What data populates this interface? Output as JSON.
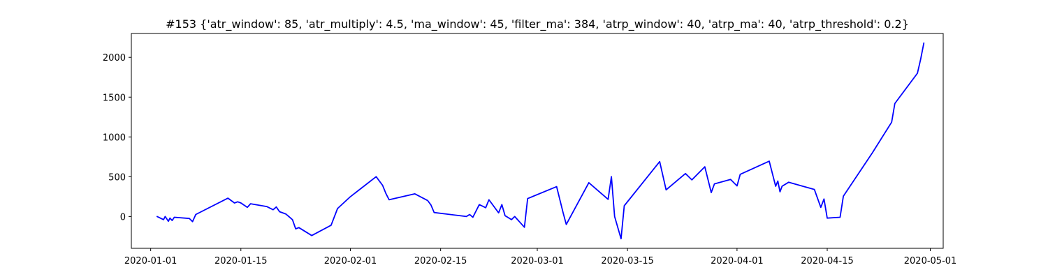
{
  "chart_data": {
    "type": "line",
    "title": "#153 {'atr_window': 85, 'atr_multiply': 4.5, 'ma_window': 45, 'filter_ma': 384, 'atrp_window': 40, 'atrp_ma': 40, 'atrp_threshold': 0.2}",
    "xlabel": "",
    "ylabel": "",
    "x_type": "date",
    "xlim": [
      "2019-12-29",
      "2020-05-03"
    ],
    "ylim": [
      -400,
      2300
    ],
    "x_ticks": [
      "2020-01-01",
      "2020-01-15",
      "2020-02-01",
      "2020-02-15",
      "2020-03-01",
      "2020-03-15",
      "2020-04-01",
      "2020-04-15",
      "2020-05-01"
    ],
    "y_ticks": [
      0,
      500,
      1000,
      1500,
      2000
    ],
    "grid": false,
    "colors": {
      "line": "#0000ff",
      "axes": "#000000",
      "background": "#ffffff"
    },
    "series": [
      {
        "points": [
          [
            "2020-01-02",
            0
          ],
          [
            "2020-01-03",
            -40
          ],
          [
            "2020-01-03",
            0
          ],
          [
            "2020-01-03",
            -30
          ],
          [
            "2020-01-03",
            -60
          ],
          [
            "2020-01-04",
            -20
          ],
          [
            "2020-01-04",
            -50
          ],
          [
            "2020-01-04",
            -10
          ],
          [
            "2020-01-07",
            -25
          ],
          [
            "2020-01-07",
            -65
          ],
          [
            "2020-01-08",
            25
          ],
          [
            "2020-01-13",
            230
          ],
          [
            "2020-01-14",
            170
          ],
          [
            "2020-01-14",
            185
          ],
          [
            "2020-01-15",
            170
          ],
          [
            "2020-01-16",
            115
          ],
          [
            "2020-01-16",
            160
          ],
          [
            "2020-01-19",
            125
          ],
          [
            "2020-01-20",
            85
          ],
          [
            "2020-01-20",
            120
          ],
          [
            "2020-01-21",
            60
          ],
          [
            "2020-01-22",
            30
          ],
          [
            "2020-01-23",
            -40
          ],
          [
            "2020-01-23",
            -155
          ],
          [
            "2020-01-24",
            -140
          ],
          [
            "2020-01-26",
            -240
          ],
          [
            "2020-01-29",
            -110
          ],
          [
            "2020-01-30",
            100
          ],
          [
            "2020-02-01",
            250
          ],
          [
            "2020-02-05",
            500
          ],
          [
            "2020-02-06",
            390
          ],
          [
            "2020-02-06",
            290
          ],
          [
            "2020-02-07",
            210
          ],
          [
            "2020-02-11",
            285
          ],
          [
            "2020-02-13",
            200
          ],
          [
            "2020-02-13",
            145
          ],
          [
            "2020-02-14",
            50
          ],
          [
            "2020-02-19",
            0
          ],
          [
            "2020-02-19",
            25
          ],
          [
            "2020-02-20",
            -10
          ],
          [
            "2020-02-21",
            150
          ],
          [
            "2020-02-22",
            110
          ],
          [
            "2020-02-22",
            210
          ],
          [
            "2020-02-24",
            45
          ],
          [
            "2020-02-24",
            150
          ],
          [
            "2020-02-25",
            10
          ],
          [
            "2020-02-26",
            -40
          ],
          [
            "2020-02-26",
            0
          ],
          [
            "2020-02-28",
            -135
          ],
          [
            "2020-02-28",
            225
          ],
          [
            "2020-03-04",
            375
          ],
          [
            "2020-03-05",
            50
          ],
          [
            "2020-03-05",
            -100
          ],
          [
            "2020-03-09",
            425
          ],
          [
            "2020-03-12",
            215
          ],
          [
            "2020-03-12",
            500
          ],
          [
            "2020-03-13",
            0
          ],
          [
            "2020-03-14",
            -280
          ],
          [
            "2020-03-14",
            135
          ],
          [
            "2020-03-20",
            690
          ],
          [
            "2020-03-21",
            335
          ],
          [
            "2020-03-24",
            540
          ],
          [
            "2020-03-25",
            460
          ],
          [
            "2020-03-27",
            625
          ],
          [
            "2020-03-28",
            300
          ],
          [
            "2020-03-28",
            410
          ],
          [
            "2020-03-31",
            465
          ],
          [
            "2020-04-01",
            385
          ],
          [
            "2020-04-01",
            530
          ],
          [
            "2020-04-06",
            695
          ],
          [
            "2020-04-07",
            380
          ],
          [
            "2020-04-07",
            445
          ],
          [
            "2020-04-07",
            310
          ],
          [
            "2020-04-08",
            380
          ],
          [
            "2020-04-09",
            430
          ],
          [
            "2020-04-13",
            340
          ],
          [
            "2020-04-14",
            115
          ],
          [
            "2020-04-14",
            220
          ],
          [
            "2020-04-15",
            -20
          ],
          [
            "2020-04-17",
            -10
          ],
          [
            "2020-04-17",
            255
          ],
          [
            "2020-04-22",
            800
          ],
          [
            "2020-04-25",
            1185
          ],
          [
            "2020-04-25",
            1420
          ],
          [
            "2020-04-29",
            1800
          ],
          [
            "2020-04-29",
            1975
          ],
          [
            "2020-04-30",
            2180
          ]
        ]
      }
    ]
  }
}
